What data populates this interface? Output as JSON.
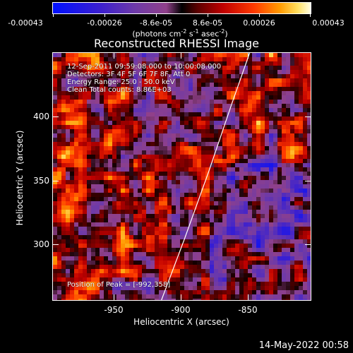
{
  "colorbar": {
    "labels": [
      "-0.00043",
      "-0.00026",
      "-8.6e-05",
      "8.6e-05",
      "0.00026",
      "0.00043"
    ],
    "units_prefix": "(photons cm",
    "units_sup1": "-2",
    "units_mid": " s",
    "units_sup2": "-1",
    "units_mid2": " asec",
    "units_sup3": "-2",
    "units_suffix": ")",
    "colors": {
      "min": "#0010ff",
      "mid": "#000000",
      "max": "#ffffe6"
    }
  },
  "plot": {
    "title": "Reconstructed RHESSI Image",
    "annotations": {
      "time": "12-Sep-2011 09:59:08.000 to 10:00:08.000",
      "detectors": "Detectors: 3F 4F 5F 6F 7F 8F, Att 0",
      "energy": "Energy Range: 25.0 - 50.0 keV",
      "clean": "Clean     Total counts: 8.86E+03",
      "peak": "Position of Peak = [-992,358]"
    },
    "xlabel": "Heliocentric X (arcsec)",
    "ylabel": "Heliocentric Y (arcsec)",
    "xticks": [
      "-950",
      "-900",
      "-850"
    ],
    "yticks": [
      "400",
      "350",
      "300"
    ]
  },
  "chart_data": {
    "type": "heatmap",
    "title": "Reconstructed RHESSI Image",
    "xlabel": "Heliocentric X (arcsec)",
    "ylabel": "Heliocentric Y (arcsec)",
    "xlim": [
      -1000,
      -810
    ],
    "ylim": [
      255,
      437
    ],
    "x_ticks": [
      -950,
      -900,
      -850
    ],
    "y_ticks": [
      300,
      350,
      400
    ],
    "colorbar_range": [
      -0.00043,
      0.00043
    ],
    "peak": [
      -992,
      358
    ],
    "limb_line": [
      [
        -920,
        255
      ],
      [
        -903,
        300
      ],
      [
        -885,
        350
      ],
      [
        -868,
        400
      ],
      [
        -855,
        437
      ]
    ],
    "grid": false
  },
  "footer": {
    "timestamp": "14-May-2022 00:58"
  }
}
